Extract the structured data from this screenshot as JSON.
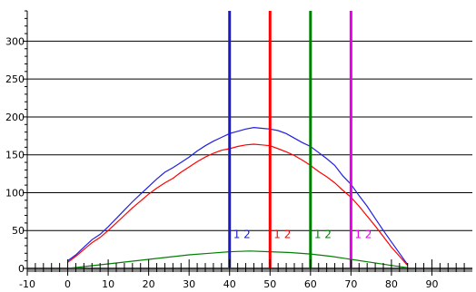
{
  "chart_data": {
    "type": "line",
    "title": "",
    "xlabel": "",
    "ylabel": "",
    "xlim": [
      -10,
      100
    ],
    "ylim": [
      0,
      340
    ],
    "x_ticks": [
      -10,
      0,
      10,
      20,
      30,
      40,
      50,
      60,
      70,
      80,
      90
    ],
    "x_tick_labels": [
      "-10",
      "0",
      "10",
      "20",
      "30",
      "40",
      "50",
      "60",
      "70",
      "80",
      "90"
    ],
    "y_ticks": [
      0,
      50,
      100,
      150,
      200,
      250,
      300
    ],
    "y_tick_labels": [
      "0",
      "50",
      "100",
      "150",
      "200",
      "250",
      "300"
    ],
    "grid": "horizontal",
    "series": [
      {
        "color": "#2020e0",
        "x": [
          0,
          2,
          4,
          6,
          8,
          10,
          12,
          14,
          16,
          18,
          20,
          22,
          24,
          26,
          28,
          30,
          32,
          34,
          36,
          38,
          40,
          42,
          44,
          46,
          48,
          50,
          52,
          54,
          56,
          58,
          60,
          62,
          64,
          66,
          68,
          70,
          72,
          74,
          76,
          78,
          80,
          82,
          84
        ],
        "values": [
          10,
          18,
          28,
          38,
          45,
          55,
          66,
          77,
          88,
          98,
          108,
          118,
          127,
          133,
          140,
          147,
          155,
          162,
          168,
          173,
          178,
          181,
          184,
          186,
          185,
          184,
          182,
          178,
          172,
          166,
          161,
          153,
          145,
          136,
          122,
          111,
          96,
          82,
          66,
          50,
          35,
          20,
          5
        ]
      },
      {
        "color": "#ff0000",
        "x": [
          0,
          2,
          4,
          6,
          8,
          10,
          12,
          14,
          16,
          18,
          20,
          22,
          24,
          26,
          28,
          30,
          32,
          34,
          36,
          38,
          40,
          42,
          44,
          46,
          48,
          50,
          52,
          54,
          56,
          58,
          60,
          62,
          64,
          66,
          68,
          70,
          72,
          74,
          76,
          78,
          80,
          82,
          84
        ],
        "values": [
          8,
          16,
          25,
          34,
          41,
          50,
          60,
          70,
          80,
          89,
          98,
          106,
          113,
          119,
          127,
          134,
          141,
          147,
          152,
          156,
          158,
          161,
          163,
          164,
          163,
          162,
          158,
          154,
          149,
          143,
          136,
          128,
          121,
          113,
          103,
          94,
          82,
          69,
          56,
          42,
          28,
          16,
          4
        ]
      },
      {
        "color": "#008000",
        "x": [
          0,
          5,
          10,
          15,
          20,
          25,
          30,
          35,
          40,
          45,
          50,
          55,
          60,
          65,
          70,
          75,
          80,
          84
        ],
        "values": [
          0,
          3,
          6,
          9,
          12,
          15,
          18,
          20,
          22,
          23,
          22,
          21,
          19,
          16,
          12,
          8,
          4,
          1
        ]
      }
    ],
    "cursors": [
      {
        "x": 40,
        "color": "#1a1acc",
        "label": "1 2"
      },
      {
        "x": 50,
        "color": "#ff0000",
        "label": "1 2"
      },
      {
        "x": 60,
        "color": "#008000",
        "label": "1 2"
      },
      {
        "x": 70,
        "color": "#e600e6",
        "label": "1 2"
      }
    ]
  }
}
